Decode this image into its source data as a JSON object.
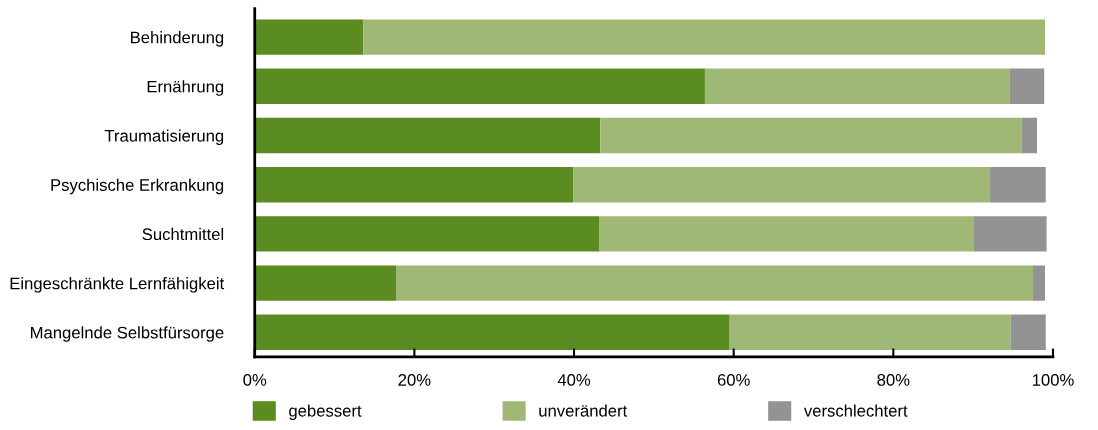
{
  "chart_data": {
    "type": "bar",
    "orientation": "horizontal",
    "stacked": true,
    "categories": [
      "Behinderung",
      "Ernährung",
      "Traumatisierung",
      "Psychische Erkrankung",
      "Suchtmittel",
      "Eingeschränkte Lernfähigkeit",
      "Mangelnde Selbstfürsorge"
    ],
    "series": [
      {
        "name": "gebessert",
        "color": "#5b8c21",
        "values": [
          13.6,
          56.4,
          43.3,
          39.9,
          43.2,
          17.7,
          59.5
        ]
      },
      {
        "name": "unverändert",
        "color": "#a0b875",
        "values": [
          85.4,
          38.2,
          52.8,
          52.2,
          46.9,
          79.8,
          35.2
        ]
      },
      {
        "name": "verschlechtert",
        "color": "#939393",
        "values": [
          0,
          4.3,
          1.9,
          7.0,
          9.1,
          1.5,
          4.4
        ]
      }
    ],
    "xlim": [
      0,
      100
    ],
    "xticks": [
      {
        "value": 0,
        "label": "0%"
      },
      {
        "value": 20,
        "label": "20%"
      },
      {
        "value": 40,
        "label": "40%"
      },
      {
        "value": 60,
        "label": "60%"
      },
      {
        "value": 80,
        "label": "80%"
      },
      {
        "value": 100,
        "label": "100%"
      }
    ],
    "grid": false,
    "legend": "bottom"
  }
}
